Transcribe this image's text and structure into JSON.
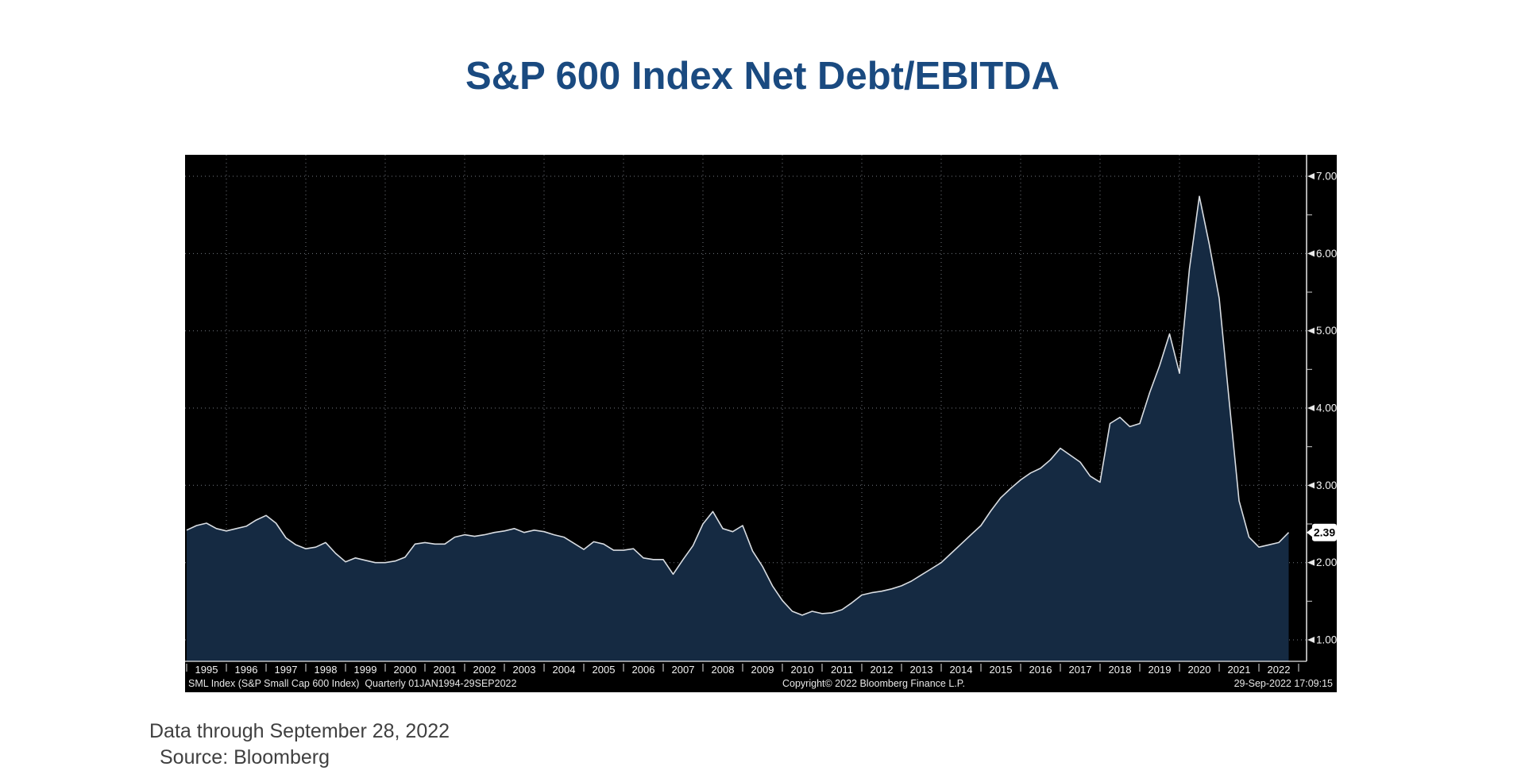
{
  "page": {
    "title": "S&P 600 Index Net Debt/EBITDA",
    "footnote_line1": "Data through September 28, 2022",
    "footnote_line2": "Source: Bloomberg"
  },
  "chart_data": {
    "type": "area",
    "title": "S&P 600 Index Net Debt/EBITDA",
    "series": [
      {
        "name": "SML Index (S&P Small Cap 600 Index) Net Debt/EBITDA, quarterly",
        "start": 1995.0,
        "step": 0.25,
        "values": [
          2.42,
          2.48,
          2.51,
          2.44,
          2.41,
          2.44,
          2.47,
          2.55,
          2.61,
          2.51,
          2.32,
          2.23,
          2.18,
          2.2,
          2.26,
          2.12,
          2.01,
          2.06,
          2.03,
          2.0,
          2.0,
          2.02,
          2.07,
          2.24,
          2.26,
          2.24,
          2.24,
          2.33,
          2.36,
          2.34,
          2.36,
          2.39,
          2.41,
          2.44,
          2.39,
          2.42,
          2.4,
          2.36,
          2.33,
          2.25,
          2.17,
          2.27,
          2.24,
          2.16,
          2.16,
          2.18,
          2.06,
          2.04,
          2.04,
          1.85,
          2.04,
          2.22,
          2.5,
          2.66,
          2.44,
          2.4,
          2.48,
          2.15,
          1.95,
          1.7,
          1.51,
          1.37,
          1.32,
          1.37,
          1.34,
          1.35,
          1.39,
          1.48,
          1.58,
          1.61,
          1.63,
          1.66,
          1.7,
          1.76,
          1.84,
          1.92,
          2.0,
          2.12,
          2.24,
          2.36,
          2.48,
          2.67,
          2.84,
          2.96,
          3.07,
          3.16,
          3.22,
          3.33,
          3.48,
          3.39,
          3.3,
          3.12,
          3.04,
          3.8,
          3.88,
          3.76,
          3.8,
          4.2,
          4.55,
          4.96,
          4.45,
          5.8,
          6.74,
          6.12,
          5.42,
          4.1,
          2.8,
          2.33,
          2.2,
          2.23,
          2.26,
          2.39
        ]
      }
    ],
    "visible_x_range": [
      1995.0,
      2022.75
    ],
    "ylim": [
      0.72,
      7.28
    ],
    "x_tick_labels": [
      "1995",
      "1996",
      "1997",
      "1998",
      "1999",
      "2000",
      "2001",
      "2002",
      "2003",
      "2004",
      "2005",
      "2006",
      "2007",
      "2008",
      "2009",
      "2010",
      "2011",
      "2012",
      "2013",
      "2014",
      "2015",
      "2016",
      "2017",
      "2018",
      "2019",
      "2020",
      "2021",
      "2022"
    ],
    "y_ticks": [
      7.0,
      6.0,
      5.0,
      4.0,
      3.0,
      2.0,
      1.0
    ],
    "y_tick_labels": [
      "7.00",
      "6.00",
      "5.00",
      "4.00",
      "3.00",
      "2.00",
      "1.00"
    ],
    "y_minor_tick_step": 0.5,
    "vertical_gridline_years": [
      1996,
      1998,
      2000,
      2002,
      2004,
      2006,
      2008,
      2010,
      2012,
      2014,
      2016,
      2018,
      2020,
      2022
    ],
    "grid": "dotted",
    "legend_position": "none",
    "last_value_label": "2.39",
    "footer_left": "SML Index (S&P Small Cap 600 Index)  Quarterly 01JAN1994-29SEP2022",
    "footer_center": "Copyright© 2022 Bloomberg Finance L.P.",
    "footer_right": "29-Sep-2022 17:09:15",
    "colors": {
      "title": "#1a4a80",
      "chart_background": "#000000",
      "area_fill": "#152a42",
      "line": "#d9dde2",
      "axis": "#e8e8e8",
      "gridline": "#9aa2ad",
      "price_badge_background": "#ffffff",
      "price_badge_text": "#000000"
    }
  }
}
